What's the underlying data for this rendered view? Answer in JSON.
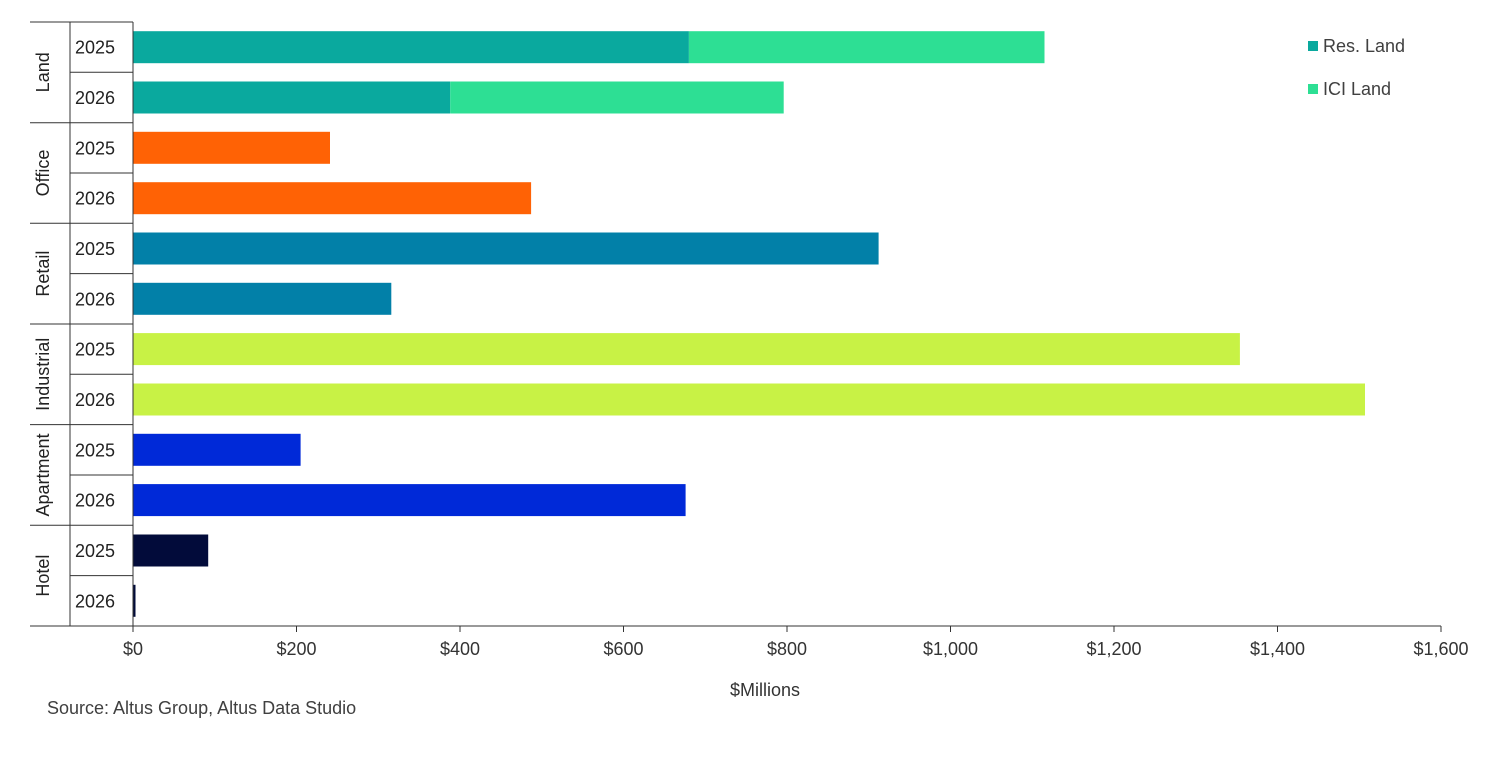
{
  "chart_data": {
    "type": "bar",
    "orientation": "horizontal",
    "stacked": true,
    "xlabel": "$Millions",
    "xlim": [
      0,
      1600
    ],
    "x_ticks": [
      "$0",
      "$200",
      "$400",
      "$600",
      "$800",
      "$1,000",
      "$1,200",
      "$1,400",
      "$1,600"
    ],
    "x_tick_values": [
      0,
      200,
      400,
      600,
      800,
      1000,
      1200,
      1400,
      1600
    ],
    "grid": false,
    "legend_position": "top-right",
    "legend": [
      {
        "label": "Res. Land",
        "color": "#0aa99e"
      },
      {
        "label": "ICI Land",
        "color": "#2ddf94"
      }
    ],
    "groups": [
      {
        "label": "Land",
        "rows": [
          {
            "year": "2025",
            "segments": [
              {
                "value": 680,
                "color": "#0aa99e"
              },
              {
                "value": 435,
                "color": "#2ddf94"
              }
            ]
          },
          {
            "year": "2026",
            "segments": [
              {
                "value": 388,
                "color": "#0aa99e"
              },
              {
                "value": 408,
                "color": "#2ddf94"
              }
            ]
          }
        ]
      },
      {
        "label": "Office",
        "rows": [
          {
            "year": "2025",
            "segments": [
              {
                "value": 241,
                "color": "#ff6205"
              }
            ]
          },
          {
            "year": "2026",
            "segments": [
              {
                "value": 487,
                "color": "#ff6205"
              }
            ]
          }
        ]
      },
      {
        "label": "Retail",
        "rows": [
          {
            "year": "2025",
            "segments": [
              {
                "value": 912,
                "color": "#0280a8"
              }
            ]
          },
          {
            "year": "2026",
            "segments": [
              {
                "value": 316,
                "color": "#0280a8"
              }
            ]
          }
        ]
      },
      {
        "label": "Industrial",
        "rows": [
          {
            "year": "2025",
            "segments": [
              {
                "value": 1354,
                "color": "#c8f245"
              }
            ]
          },
          {
            "year": "2026",
            "segments": [
              {
                "value": 1507,
                "color": "#c8f245"
              }
            ]
          }
        ]
      },
      {
        "label": "Apartment",
        "rows": [
          {
            "year": "2025",
            "segments": [
              {
                "value": 205,
                "color": "#0029d8"
              }
            ]
          },
          {
            "year": "2026",
            "segments": [
              {
                "value": 676,
                "color": "#0029d8"
              }
            ]
          }
        ]
      },
      {
        "label": "Hotel",
        "rows": [
          {
            "year": "2025",
            "segments": [
              {
                "value": 92,
                "color": "#020b3a"
              }
            ]
          },
          {
            "year": "2026",
            "segments": [
              {
                "value": 3,
                "color": "#020b3a"
              }
            ]
          }
        ]
      }
    ]
  },
  "source_note": "Source:  Altus Group, Altus Data Studio"
}
